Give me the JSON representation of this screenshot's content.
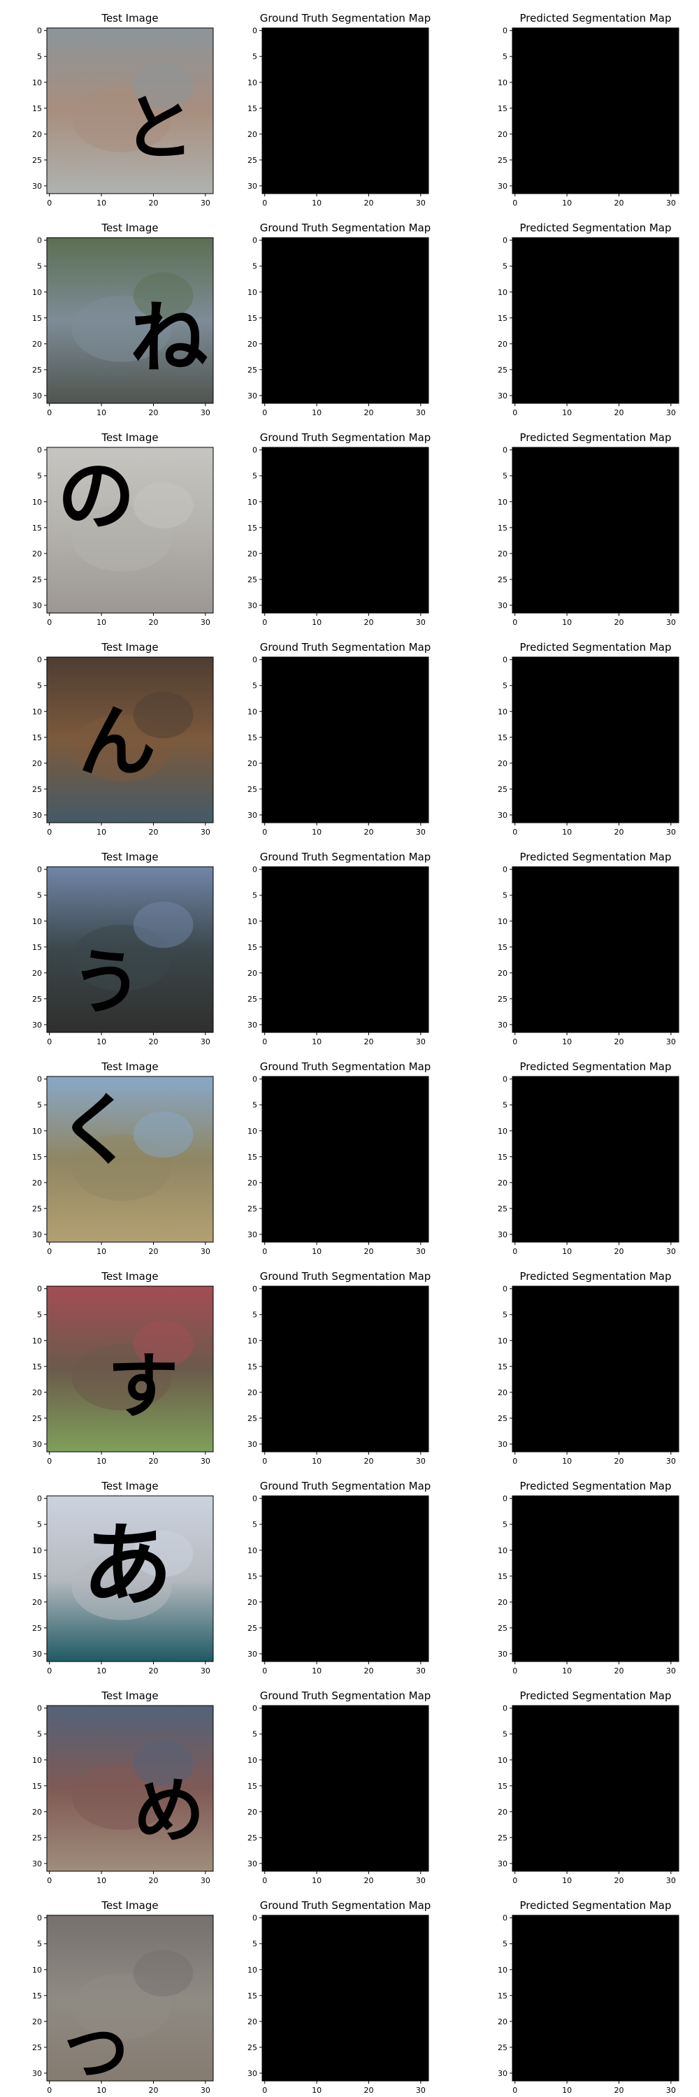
{
  "panel_titles": [
    "Test Image",
    "Ground Truth Segmentation Map",
    "Predicted Segmentation Map"
  ],
  "axis": {
    "x_ticks": [
      "0",
      "10",
      "20",
      "30"
    ],
    "y_ticks": [
      "0",
      "5",
      "10",
      "15",
      "20",
      "25",
      "30"
    ],
    "range": [
      0,
      31
    ]
  },
  "rows": [
    {
      "photo": {
        "top": "#8c959a",
        "mid": "#a88e7e",
        "bottom": "#aeb3b0"
      },
      "glyph": "と",
      "glyph_x": 21,
      "glyph_y": 19,
      "glyph_size": 11
    },
    {
      "photo": {
        "top": "#5c6f53",
        "mid": "#7d8c97",
        "bottom": "#50554f"
      },
      "glyph": "ね",
      "glyph_x": 23,
      "glyph_y": 19,
      "glyph_size": 12
    },
    {
      "photo": {
        "top": "#c7c5c1",
        "mid": "#b4b2ad",
        "bottom": "#9c9792"
      },
      "glyph": "の",
      "glyph_x": 9,
      "glyph_y": 9,
      "glyph_size": 12
    },
    {
      "photo": {
        "top": "#4e3d33",
        "mid": "#7c5a3c",
        "bottom": "#445a67"
      },
      "glyph": "ん",
      "glyph_x": 13,
      "glyph_y": 16,
      "glyph_size": 12
    },
    {
      "photo": {
        "top": "#7186a8",
        "mid": "#3b474b",
        "bottom": "#2f2f2d"
      },
      "glyph": "う",
      "glyph_x": 11,
      "glyph_y": 22,
      "glyph_size": 11
    },
    {
      "photo": {
        "top": "#88a8c8",
        "mid": "#8f8663",
        "bottom": "#b3a071"
      },
      "glyph": "く",
      "glyph_x": 9,
      "glyph_y": 10,
      "glyph_size": 12
    },
    {
      "photo": {
        "top": "#a44d54",
        "mid": "#6b5a4b",
        "bottom": "#7fa05a"
      },
      "glyph": "す",
      "glyph_x": 18,
      "glyph_y": 19,
      "glyph_size": 11
    },
    {
      "photo": {
        "top": "#ccd3df",
        "mid": "#b6bac0",
        "bottom": "#1f5a64"
      },
      "glyph": "あ",
      "glyph_x": 15,
      "glyph_y": 13,
      "glyph_size": 14
    },
    {
      "photo": {
        "top": "#536279",
        "mid": "#7f5a55",
        "bottom": "#a08d7b"
      },
      "glyph": "め",
      "glyph_x": 23,
      "glyph_y": 20,
      "glyph_size": 11
    },
    {
      "photo": {
        "top": "#76706e",
        "mid": "#8f8b83",
        "bottom": "#857b70"
      },
      "glyph": "つ",
      "glyph_x": 9,
      "glyph_y": 26,
      "glyph_size": 10
    }
  ]
}
